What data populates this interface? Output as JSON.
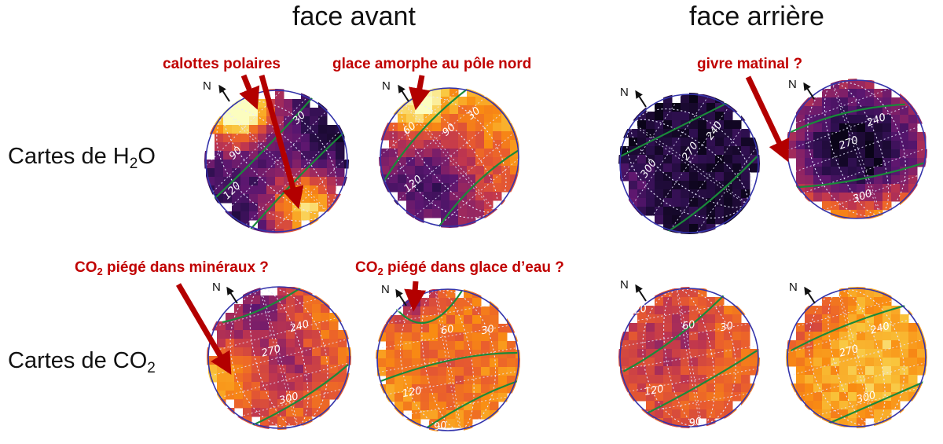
{
  "headers": {
    "front": "face avant",
    "back": "face arrière"
  },
  "rows": {
    "h2o": {
      "prefix": "Cartes de H",
      "sub": "2",
      "suffix": "O"
    },
    "co2": {
      "prefix": "Cartes de CO",
      "sub": "2",
      "suffix": ""
    }
  },
  "annotations": {
    "polar_caps": "calottes polaires",
    "amorphous_ice": "glace amorphe au pôle nord",
    "morning_frost": "givre matinal ?",
    "co2_minerals": {
      "prefix": "CO",
      "sub": "2",
      "suffix": " piégé dans minéraux ?"
    },
    "co2_ice": {
      "prefix": "CO",
      "sub": "2",
      "suffix": " piégé dans glace d’eau ?"
    }
  },
  "north_label": "N",
  "colors": {
    "annotation": "#c00000",
    "arrow": "#b30000",
    "limb": "#3333aa",
    "terminator": "#1a8a3a",
    "grid": "#e8e8ff",
    "colormap": [
      "#0a0418",
      "#2d0f4e",
      "#5a1670",
      "#8a2266",
      "#c0364e",
      "#e95c2e",
      "#f98c12",
      "#f9c43a",
      "#fcfdbf"
    ]
  },
  "maps": [
    {
      "id": "h2o-front-1",
      "labels": [
        "30",
        "90",
        "120"
      ]
    },
    {
      "id": "h2o-front-2",
      "labels": [
        "30",
        "60",
        "90",
        "120"
      ]
    },
    {
      "id": "h2o-back-1",
      "labels": [
        "240",
        "270",
        "300"
      ]
    },
    {
      "id": "h2o-back-2",
      "labels": [
        "240",
        "270",
        "300"
      ]
    },
    {
      "id": "co2-front-1",
      "labels": [
        "240",
        "270",
        "300"
      ]
    },
    {
      "id": "co2-front-2",
      "labels": [
        "20",
        "30",
        "60",
        "90",
        "120",
        "12"
      ]
    },
    {
      "id": "co2-back-1",
      "labels": [
        "20",
        "30",
        "60",
        "90",
        "120"
      ]
    },
    {
      "id": "co2-back-2",
      "labels": [
        "240",
        "270",
        "300"
      ]
    }
  ]
}
